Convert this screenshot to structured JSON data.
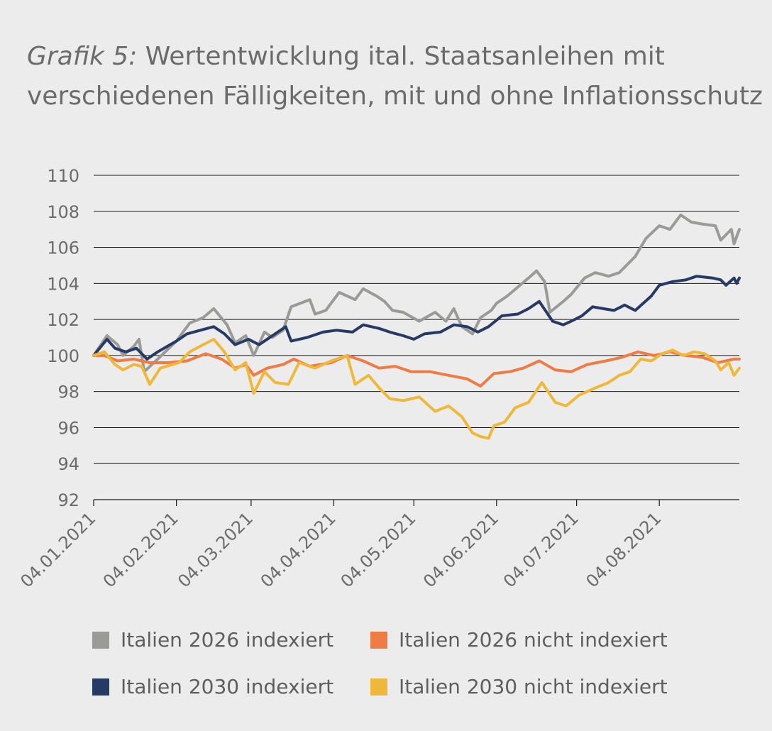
{
  "title_prefix": "Grafik 5:",
  "title_rest": " Wertentwicklung ital. Staatsanleihen mit verschiedenen Fälligkeiten, mit und ohne Inflationsschutz",
  "chart_data": {
    "type": "line",
    "title": "Wertentwicklung ital. Staatsanleihen mit verschiedenen Fälligkeiten, mit und ohne Inflationsschutz",
    "xlabel": "",
    "ylabel": "",
    "ylim": [
      92,
      110
    ],
    "yticks": [
      92,
      94,
      96,
      98,
      100,
      102,
      104,
      106,
      108,
      110
    ],
    "xlim": [
      "2021-01-04",
      "2021-09-03"
    ],
    "xtick_dates": [
      "2021-01-04",
      "2021-02-04",
      "2021-03-04",
      "2021-04-04",
      "2021-05-04",
      "2021-06-04",
      "2021-07-04",
      "2021-08-04"
    ],
    "xtick_labels": [
      "04.01.2021",
      "04.02.2021",
      "04.03.2021",
      "04.04.2021",
      "04.05.2021",
      "04.06.2021",
      "04.07.2021",
      "04.08.2021"
    ],
    "grid": "horizontal",
    "legend_position": "bottom",
    "series": [
      {
        "name": "Italien 2026 indexiert",
        "color": "#9a9a96",
        "points": [
          [
            "2021-01-04",
            100.0
          ],
          [
            "2021-01-09",
            101.1
          ],
          [
            "2021-01-13",
            100.6
          ],
          [
            "2021-01-15",
            100.0
          ],
          [
            "2021-01-19",
            100.5
          ],
          [
            "2021-01-21",
            100.9
          ],
          [
            "2021-01-23",
            99.1
          ],
          [
            "2021-01-28",
            99.8
          ],
          [
            "2021-02-04",
            100.8
          ],
          [
            "2021-02-09",
            101.8
          ],
          [
            "2021-02-14",
            102.1
          ],
          [
            "2021-02-18",
            102.6
          ],
          [
            "2021-02-23",
            101.7
          ],
          [
            "2021-02-26",
            100.7
          ],
          [
            "2021-03-02",
            101.1
          ],
          [
            "2021-03-05",
            100.0
          ],
          [
            "2021-03-09",
            101.3
          ],
          [
            "2021-03-12",
            101.0
          ],
          [
            "2021-03-16",
            101.4
          ],
          [
            "2021-03-19",
            102.7
          ],
          [
            "2021-03-26",
            103.1
          ],
          [
            "2021-03-28",
            102.3
          ],
          [
            "2021-04-01",
            102.5
          ],
          [
            "2021-04-06",
            103.5
          ],
          [
            "2021-04-12",
            103.1
          ],
          [
            "2021-04-15",
            103.7
          ],
          [
            "2021-04-20",
            103.3
          ],
          [
            "2021-04-23",
            103.0
          ],
          [
            "2021-04-26",
            102.5
          ],
          [
            "2021-04-30",
            102.4
          ],
          [
            "2021-05-06",
            101.9
          ],
          [
            "2021-05-12",
            102.4
          ],
          [
            "2021-05-16",
            101.9
          ],
          [
            "2021-05-19",
            102.6
          ],
          [
            "2021-05-22",
            101.6
          ],
          [
            "2021-05-26",
            101.2
          ],
          [
            "2021-05-29",
            102.1
          ],
          [
            "2021-06-02",
            102.5
          ],
          [
            "2021-06-04",
            102.9
          ],
          [
            "2021-06-08",
            103.3
          ],
          [
            "2021-06-12",
            103.8
          ],
          [
            "2021-06-16",
            104.3
          ],
          [
            "2021-06-19",
            104.7
          ],
          [
            "2021-06-22",
            104.1
          ],
          [
            "2021-06-24",
            102.4
          ],
          [
            "2021-06-29",
            103.0
          ],
          [
            "2021-07-02",
            103.4
          ],
          [
            "2021-07-07",
            104.3
          ],
          [
            "2021-07-11",
            104.6
          ],
          [
            "2021-07-16",
            104.4
          ],
          [
            "2021-07-20",
            104.6
          ],
          [
            "2021-07-26",
            105.5
          ],
          [
            "2021-07-30",
            106.5
          ],
          [
            "2021-08-04",
            107.2
          ],
          [
            "2021-08-08",
            107.0
          ],
          [
            "2021-08-12",
            107.8
          ],
          [
            "2021-08-16",
            107.4
          ],
          [
            "2021-08-20",
            107.3
          ],
          [
            "2021-08-25",
            107.2
          ],
          [
            "2021-08-27",
            106.4
          ],
          [
            "2021-08-31",
            107.0
          ],
          [
            "2021-09-01",
            106.2
          ],
          [
            "2021-09-03",
            107.0
          ]
        ]
      },
      {
        "name": "Italien 2026 nicht indexiert",
        "color": "#ef7b45",
        "points": [
          [
            "2021-01-04",
            100.0
          ],
          [
            "2021-01-08",
            100.0
          ],
          [
            "2021-01-13",
            99.7
          ],
          [
            "2021-01-19",
            99.8
          ],
          [
            "2021-01-25",
            99.6
          ],
          [
            "2021-02-01",
            99.6
          ],
          [
            "2021-02-08",
            99.7
          ],
          [
            "2021-02-15",
            100.1
          ],
          [
            "2021-02-21",
            99.8
          ],
          [
            "2021-02-26",
            99.3
          ],
          [
            "2021-03-02",
            99.5
          ],
          [
            "2021-03-05",
            98.9
          ],
          [
            "2021-03-10",
            99.3
          ],
          [
            "2021-03-16",
            99.5
          ],
          [
            "2021-03-20",
            99.8
          ],
          [
            "2021-03-26",
            99.4
          ],
          [
            "2021-04-03",
            99.6
          ],
          [
            "2021-04-09",
            100.0
          ],
          [
            "2021-04-15",
            99.7
          ],
          [
            "2021-04-21",
            99.3
          ],
          [
            "2021-04-27",
            99.4
          ],
          [
            "2021-05-03",
            99.1
          ],
          [
            "2021-05-10",
            99.1
          ],
          [
            "2021-05-17",
            98.9
          ],
          [
            "2021-05-24",
            98.7
          ],
          [
            "2021-05-29",
            98.3
          ],
          [
            "2021-06-03",
            99.0
          ],
          [
            "2021-06-09",
            99.1
          ],
          [
            "2021-06-14",
            99.3
          ],
          [
            "2021-06-20",
            99.7
          ],
          [
            "2021-06-26",
            99.2
          ],
          [
            "2021-07-02",
            99.1
          ],
          [
            "2021-07-08",
            99.5
          ],
          [
            "2021-07-15",
            99.7
          ],
          [
            "2021-07-21",
            99.9
          ],
          [
            "2021-07-27",
            100.2
          ],
          [
            "2021-08-02",
            100.0
          ],
          [
            "2021-08-08",
            100.2
          ],
          [
            "2021-08-14",
            100.0
          ],
          [
            "2021-08-20",
            99.9
          ],
          [
            "2021-08-26",
            99.6
          ],
          [
            "2021-09-01",
            99.8
          ],
          [
            "2021-09-03",
            99.8
          ]
        ]
      },
      {
        "name": "Italien 2030 indexiert",
        "color": "#263a66",
        "points": [
          [
            "2021-01-04",
            100.0
          ],
          [
            "2021-01-09",
            100.9
          ],
          [
            "2021-01-12",
            100.4
          ],
          [
            "2021-01-16",
            100.2
          ],
          [
            "2021-01-20",
            100.4
          ],
          [
            "2021-01-24",
            99.8
          ],
          [
            "2021-01-28",
            100.2
          ],
          [
            "2021-02-04",
            100.8
          ],
          [
            "2021-02-08",
            101.2
          ],
          [
            "2021-02-13",
            101.4
          ],
          [
            "2021-02-18",
            101.6
          ],
          [
            "2021-02-22",
            101.2
          ],
          [
            "2021-02-26",
            100.6
          ],
          [
            "2021-03-03",
            100.9
          ],
          [
            "2021-03-07",
            100.6
          ],
          [
            "2021-03-12",
            101.1
          ],
          [
            "2021-03-17",
            101.6
          ],
          [
            "2021-03-19",
            100.8
          ],
          [
            "2021-03-25",
            101.0
          ],
          [
            "2021-03-31",
            101.3
          ],
          [
            "2021-04-05",
            101.4
          ],
          [
            "2021-04-11",
            101.3
          ],
          [
            "2021-04-15",
            101.7
          ],
          [
            "2021-04-21",
            101.5
          ],
          [
            "2021-04-25",
            101.3
          ],
          [
            "2021-04-30",
            101.1
          ],
          [
            "2021-05-04",
            100.9
          ],
          [
            "2021-05-08",
            101.2
          ],
          [
            "2021-05-14",
            101.3
          ],
          [
            "2021-05-19",
            101.7
          ],
          [
            "2021-05-24",
            101.6
          ],
          [
            "2021-05-28",
            101.3
          ],
          [
            "2021-06-01",
            101.6
          ],
          [
            "2021-06-06",
            102.2
          ],
          [
            "2021-06-12",
            102.3
          ],
          [
            "2021-06-16",
            102.6
          ],
          [
            "2021-06-20",
            103.0
          ],
          [
            "2021-06-25",
            101.9
          ],
          [
            "2021-06-29",
            101.7
          ],
          [
            "2021-07-02",
            101.9
          ],
          [
            "2021-07-06",
            102.2
          ],
          [
            "2021-07-10",
            102.7
          ],
          [
            "2021-07-14",
            102.6
          ],
          [
            "2021-07-18",
            102.5
          ],
          [
            "2021-07-22",
            102.8
          ],
          [
            "2021-07-26",
            102.5
          ],
          [
            "2021-07-29",
            102.9
          ],
          [
            "2021-08-01",
            103.3
          ],
          [
            "2021-08-04",
            103.9
          ],
          [
            "2021-08-09",
            104.1
          ],
          [
            "2021-08-14",
            104.2
          ],
          [
            "2021-08-18",
            104.4
          ],
          [
            "2021-08-24",
            104.3
          ],
          [
            "2021-08-27",
            104.2
          ],
          [
            "2021-08-29",
            103.9
          ],
          [
            "2021-09-01",
            104.3
          ],
          [
            "2021-09-02",
            104.0
          ],
          [
            "2021-09-03",
            104.3
          ]
        ]
      },
      {
        "name": "Italien 2030 nicht indexiert",
        "color": "#f0b83a",
        "points": [
          [
            "2021-01-04",
            100.0
          ],
          [
            "2021-01-08",
            100.2
          ],
          [
            "2021-01-12",
            99.5
          ],
          [
            "2021-01-15",
            99.2
          ],
          [
            "2021-01-19",
            99.5
          ],
          [
            "2021-01-22",
            99.4
          ],
          [
            "2021-01-25",
            98.4
          ],
          [
            "2021-01-29",
            99.3
          ],
          [
            "2021-02-05",
            99.6
          ],
          [
            "2021-02-09",
            100.2
          ],
          [
            "2021-02-14",
            100.6
          ],
          [
            "2021-02-18",
            100.9
          ],
          [
            "2021-02-22",
            100.2
          ],
          [
            "2021-02-26",
            99.2
          ],
          [
            "2021-03-02",
            99.6
          ],
          [
            "2021-03-05",
            97.9
          ],
          [
            "2021-03-09",
            99.1
          ],
          [
            "2021-03-13",
            98.5
          ],
          [
            "2021-03-18",
            98.4
          ],
          [
            "2021-03-22",
            99.6
          ],
          [
            "2021-03-28",
            99.3
          ],
          [
            "2021-04-03",
            99.7
          ],
          [
            "2021-04-09",
            100.0
          ],
          [
            "2021-04-12",
            98.4
          ],
          [
            "2021-04-17",
            98.9
          ],
          [
            "2021-04-21",
            98.2
          ],
          [
            "2021-04-25",
            97.6
          ],
          [
            "2021-04-30",
            97.5
          ],
          [
            "2021-05-06",
            97.7
          ],
          [
            "2021-05-12",
            96.9
          ],
          [
            "2021-05-17",
            97.2
          ],
          [
            "2021-05-22",
            96.6
          ],
          [
            "2021-05-26",
            95.7
          ],
          [
            "2021-05-29",
            95.5
          ],
          [
            "2021-06-01",
            95.4
          ],
          [
            "2021-06-03",
            96.1
          ],
          [
            "2021-06-07",
            96.3
          ],
          [
            "2021-06-11",
            97.1
          ],
          [
            "2021-06-16",
            97.4
          ],
          [
            "2021-06-21",
            98.5
          ],
          [
            "2021-06-26",
            97.4
          ],
          [
            "2021-06-30",
            97.2
          ],
          [
            "2021-07-05",
            97.8
          ],
          [
            "2021-07-11",
            98.2
          ],
          [
            "2021-07-16",
            98.5
          ],
          [
            "2021-07-20",
            98.9
          ],
          [
            "2021-07-24",
            99.1
          ],
          [
            "2021-07-28",
            99.8
          ],
          [
            "2021-08-01",
            99.7
          ],
          [
            "2021-08-05",
            100.1
          ],
          [
            "2021-08-09",
            100.3
          ],
          [
            "2021-08-13",
            100.0
          ],
          [
            "2021-08-17",
            100.2
          ],
          [
            "2021-08-21",
            100.1
          ],
          [
            "2021-08-25",
            99.7
          ],
          [
            "2021-08-27",
            99.2
          ],
          [
            "2021-08-30",
            99.6
          ],
          [
            "2021-09-01",
            98.9
          ],
          [
            "2021-09-03",
            99.3
          ]
        ]
      }
    ]
  },
  "legend": [
    {
      "label": "Italien 2026 indexiert",
      "color": "#9a9a96"
    },
    {
      "label": "Italien 2026 nicht indexiert",
      "color": "#ef7b45"
    },
    {
      "label": "Italien 2030 indexiert",
      "color": "#263a66"
    },
    {
      "label": "Italien 2030 nicht indexiert",
      "color": "#f0b83a"
    }
  ]
}
